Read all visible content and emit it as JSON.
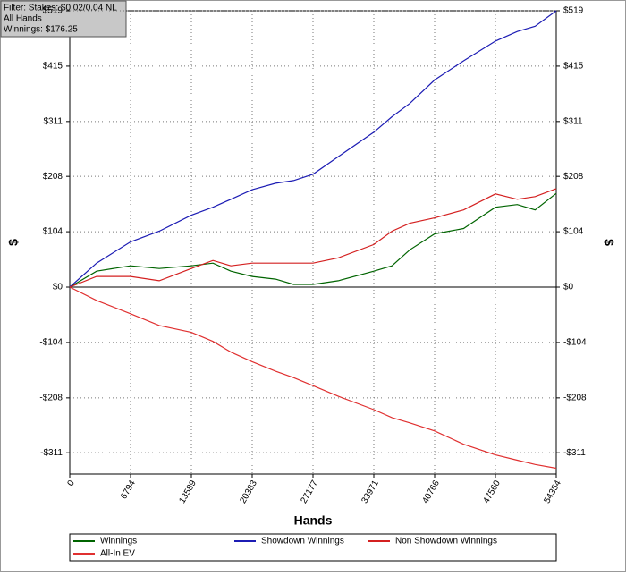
{
  "chart_data": {
    "type": "line",
    "info": [
      "Filter: Stakes: $0.02/0.04 NL",
      "All Hands",
      "Winnings: $176.25"
    ],
    "xlabel": "Hands",
    "ylabel": "$",
    "x": [
      0,
      3000,
      6794,
      10000,
      13589,
      16000,
      18000,
      20383,
      23000,
      25000,
      27177,
      30000,
      33971,
      36000,
      38000,
      40766,
      44000,
      47560,
      50000,
      52000,
      54354
    ],
    "series": [
      {
        "name": "Winnings",
        "color": "#006400",
        "values": [
          0,
          30,
          40,
          35,
          40,
          45,
          30,
          20,
          15,
          5,
          5,
          12,
          30,
          40,
          70,
          100,
          110,
          150,
          155,
          145,
          176
        ]
      },
      {
        "name": "Showdown Winnings",
        "color": "#1c1cb4",
        "values": [
          0,
          45,
          85,
          105,
          135,
          150,
          165,
          183,
          195,
          200,
          212,
          245,
          291,
          320,
          345,
          389,
          425,
          462,
          480,
          490,
          519
        ]
      },
      {
        "name": "Non Showdown Winnings",
        "color": "#d42020",
        "values": [
          0,
          20,
          20,
          12,
          35,
          50,
          40,
          45,
          45,
          45,
          45,
          55,
          80,
          105,
          120,
          130,
          145,
          175,
          165,
          170,
          185
        ]
      },
      {
        "name": "All-In EV",
        "color": "#e03030",
        "values": [
          0,
          -25,
          -50,
          -72,
          -85,
          -102,
          -122,
          -140,
          -158,
          -170,
          -185,
          -205,
          -230,
          -245,
          -255,
          -270,
          -295,
          -315,
          -325,
          -333,
          -340
        ]
      }
    ],
    "xlim": [
      0,
      54354
    ],
    "xticks": [
      0,
      6794,
      13589,
      20383,
      27177,
      33971,
      40766,
      47560,
      54354
    ],
    "ylim": [
      -351,
      519
    ],
    "yticks": [
      {
        "value": -311,
        "label": "-$311"
      },
      {
        "value": -208,
        "label": "-$208"
      },
      {
        "value": -104,
        "label": "-$104"
      },
      {
        "value": 0,
        "label": "$0"
      },
      {
        "value": 104,
        "label": "$104"
      },
      {
        "value": 208,
        "label": "$208"
      },
      {
        "value": 311,
        "label": "$311"
      },
      {
        "value": 415,
        "label": "$415"
      },
      {
        "value": 519,
        "label": "$519"
      }
    ],
    "grid": true
  }
}
